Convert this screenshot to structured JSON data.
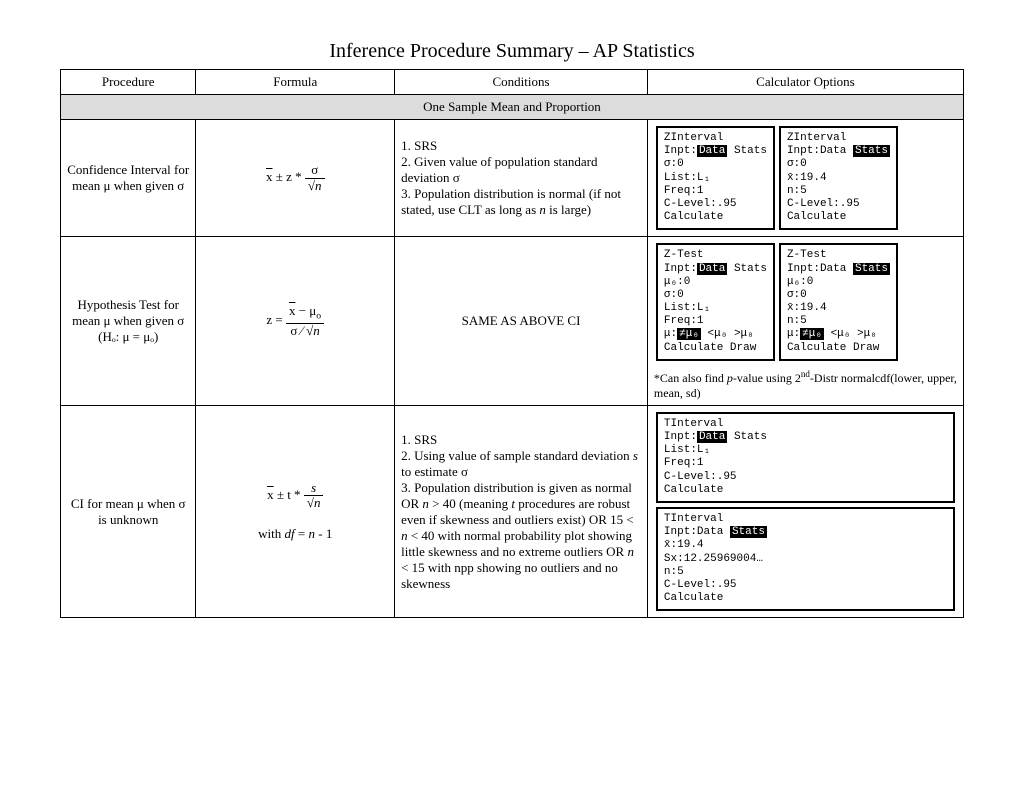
{
  "title": "Inference Procedure Summary – AP Statistics",
  "headers": {
    "procedure": "Procedure",
    "formula": "Formula",
    "conditions": "Conditions",
    "calculator": "Calculator Options"
  },
  "section": "One Sample Mean and Proportion",
  "rows": [
    {
      "procedure": "Confidence Interval for mean μ when given σ",
      "formula_html": "<span class='overline'>x</span> ± z * <span class='frac'><span class='num'>σ</span><span class='den'><span class='sqrt'></span><i>n</i></span></span>",
      "conditions_html": "1. SRS<br>2. Given value of population standard deviation σ<br>3. Population distribution is normal (if not stated, use CLT as long as <i>n</i> is large)",
      "calc_boxes": [
        "ZInterval\nInpt:<span class='inv'>Data</span> Stats\nσ:0\nList:L₁\nFreq:1\nC-Level:.95\nCalculate",
        "ZInterval\nInpt:Data <span class='inv'>Stats</span>\nσ:0\nx̄:19.4\nn:5\nC-Level:.95\nCalculate"
      ],
      "note_html": ""
    },
    {
      "procedure": "Hypothesis Test for mean μ when given σ (Hₒ: μ = μₒ)",
      "formula_html": "z = <span class='frac'><span class='num'><span class='overline'>x</span> − μ<sub>o</sub></span><span class='den'>σ ⁄ <span class='sqrt'></span><i>n</i></span></span>",
      "conditions_html": "<div style='text-align:center'>SAME AS ABOVE CI</div>",
      "calc_boxes": [
        "Z-Test\nInpt:<span class='inv'>Data</span> Stats\nμ₀:0\nσ:0\nList:L₁\nFreq:1\nμ:<span class='inv'>≠μ₀</span> &lt;μ₀ &gt;μ₀\nCalculate Draw",
        "Z-Test\nInpt:Data <span class='inv'>Stats</span>\nμ₀:0\nσ:0\nx̄:19.4\nn:5\nμ:<span class='inv'>≠μ₀</span> &lt;μ₀ &gt;μ₀\nCalculate Draw"
      ],
      "note_html": "*Can also find <i>p</i>-value using 2<sup>nd</sup>-Distr normalcdf(lower, upper, mean, sd)"
    },
    {
      "procedure": "CI for mean μ when σ is unknown",
      "formula_html": "<span class='overline'>x</span> ± t * <span class='frac'><span class='num'><i>s</i></span><span class='den'><span class='sqrt'></span><i>n</i></span></span><br><br>with <i>df</i> = <i>n</i> - 1",
      "conditions_html": "1. SRS<br>2. Using value of sample standard deviation <i>s</i> to estimate σ<br>3. Population distribution is given as normal OR <i>n</i> &gt; 40 (meaning <i>t</i> procedures are robust even if skewness and outliers exist) OR 15 &lt; <i>n</i> &lt; 40 with normal probability plot showing little skewness and no extreme outliers OR <i>n</i> &lt; 15 with npp showing no outliers and no skewness",
      "calc_boxes": [
        "TInterval\nInpt:<span class='inv'>Data</span> Stats\nList:L₁\nFreq:1\nC-Level:.95\nCalculate",
        "TInterval\nInpt:Data <span class='inv'>Stats</span>\nx̄:19.4\nSx:12.25969004…\nn:5\nC-Level:.95\nCalculate"
      ],
      "calc_stack": true,
      "note_html": ""
    }
  ],
  "colors": {
    "section_bg": "#dcdcdc",
    "border": "#000000",
    "background": "#ffffff"
  }
}
